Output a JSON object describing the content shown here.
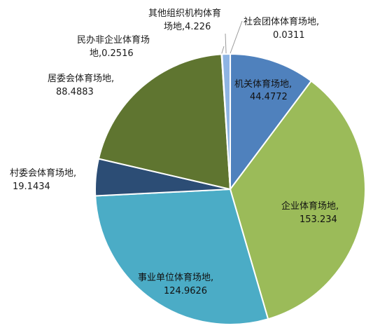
{
  "chart_data": {
    "type": "pie",
    "title": "",
    "start_angle_deg": 0,
    "direction": "clockwise",
    "slices": [
      {
        "category": "社会团体体育场地",
        "value": 0.0311,
        "value_label": "0.0311",
        "color": "#4472c4"
      },
      {
        "category": "机关体育场地",
        "value": 44.4772,
        "value_label": "44.4772",
        "color": "#4f81bd"
      },
      {
        "category": "企业体育场地",
        "value": 153.234,
        "value_label": "153.234",
        "color": "#9bbb59"
      },
      {
        "category": "事业单位体育场地",
        "value": 124.9626,
        "value_label": "124.9626",
        "color": "#4bacc6"
      },
      {
        "category": "村委会体育场地",
        "value": 19.1434,
        "value_label": "19.1434",
        "color": "#2c4d75"
      },
      {
        "category": "居委会体育场地",
        "value": 88.4883,
        "value_label": "88.4883",
        "color": "#5f7530"
      },
      {
        "category": "民办非企业体育场地",
        "value": 0.2516,
        "value_label": "0.2516",
        "color": "#8064a2"
      },
      {
        "category": "其他组织机构体育场地",
        "value": 4.226,
        "value_label": "4.226",
        "color": "#8eb4e3"
      }
    ],
    "legend": "none"
  },
  "labels": {
    "s0": {
      "line1": "社会团体体育场地,",
      "line2": "0.0311"
    },
    "s1": {
      "line1": "机关体育场地,",
      "line2": "44.4772"
    },
    "s2": {
      "line1": "企业体育场地,",
      "line2": "153.234"
    },
    "s3": {
      "line1": "事业单位体育场地,",
      "line2": "124.9626"
    },
    "s4": {
      "line1": "村委会体育场地,",
      "line2": "19.1434"
    },
    "s5": {
      "line1": "居委会体育场地,",
      "line2": "88.4883"
    },
    "s6": {
      "line1": "民办非企业体育场",
      "line2": "地,0.2516"
    },
    "s7": {
      "line1": "其他组织机构体育",
      "line2": "场地,4.226"
    }
  }
}
